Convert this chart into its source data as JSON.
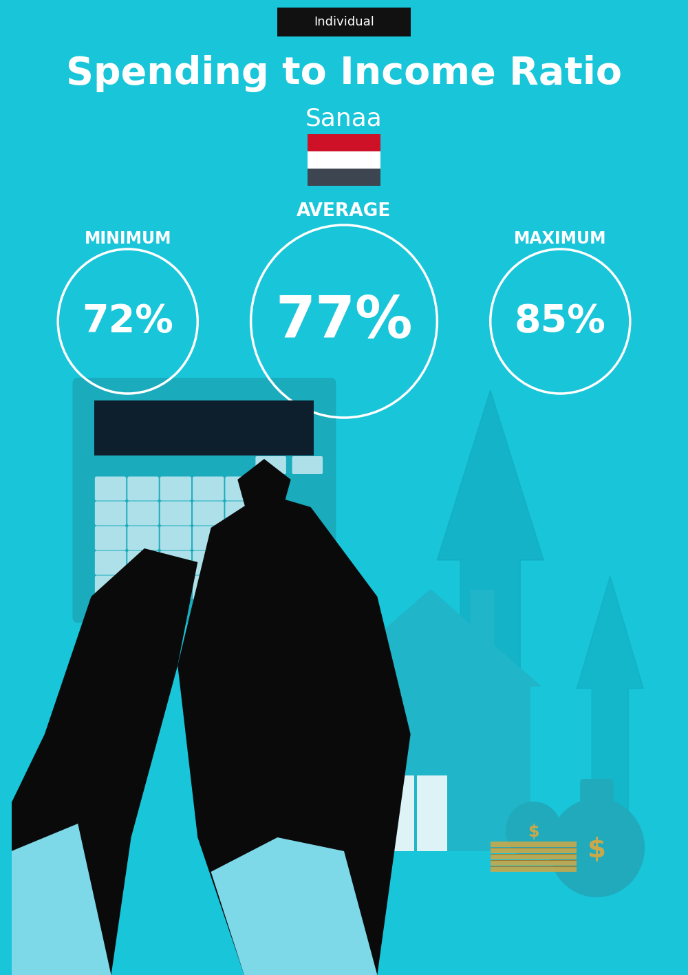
{
  "title": "Spending to Income Ratio",
  "city": "Sanaa",
  "tag": "Individual",
  "bg_color": "#18C5D9",
  "min_value": "72%",
  "avg_value": "77%",
  "max_value": "85%",
  "min_label": "MINIMUM",
  "avg_label": "AVERAGE",
  "max_label": "MAXIMUM",
  "title_color": "#FFFFFF",
  "city_color": "#FFFFFF",
  "tag_bg": "#111111",
  "tag_color": "#FFFFFF",
  "circle_color": "#FFFFFF",
  "text_color": "#FFFFFF",
  "flag_red": "#CE1126",
  "flag_white": "#FFFFFF",
  "flag_black": "#3D4550",
  "arrow_color": "#12AABF",
  "calc_body": "#1AABBC",
  "calc_screen": "#0D1F2D",
  "calc_btn": "#AEE0EA",
  "hand_color": "#0A0A0A",
  "cuff_color": "#7DD8E8",
  "house_color": "#20B5C8",
  "bag_color": "#20AABB",
  "money_color": "#C8A84B"
}
